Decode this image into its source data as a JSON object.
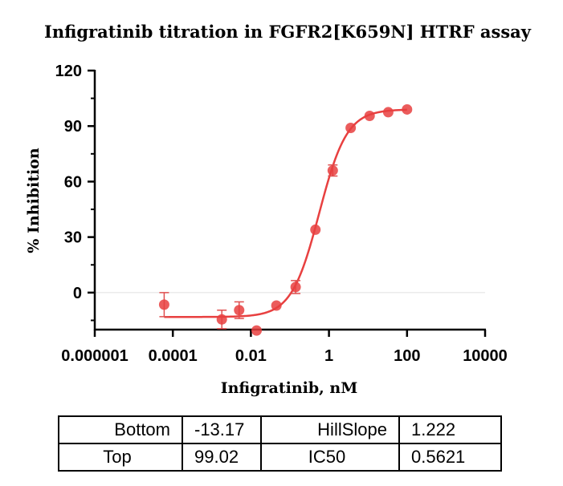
{
  "chart_data": {
    "type": "scatter",
    "title": "Infigratinib titration in FGFR2[K659N] HTRF assay",
    "xlabel": "Infigratinib, nM",
    "ylabel": "% Inhibition",
    "x_scale": "log",
    "xlim": [
      1e-06,
      10000
    ],
    "ylim": [
      -20,
      120
    ],
    "x_ticks": [
      {
        "value": 1e-06,
        "label": "0.000001"
      },
      {
        "value": 0.0001,
        "label": "0.0001"
      },
      {
        "value": 0.01,
        "label": "0.01"
      },
      {
        "value": 1,
        "label": "1"
      },
      {
        "value": 100,
        "label": "100"
      },
      {
        "value": 10000,
        "label": "10000"
      }
    ],
    "y_ticks": [
      {
        "value": 0,
        "label": "0"
      },
      {
        "value": 30,
        "label": "30"
      },
      {
        "value": 60,
        "label": "60"
      },
      {
        "value": 90,
        "label": "90"
      },
      {
        "value": 120,
        "label": "120"
      }
    ],
    "points": [
      {
        "x": 6e-05,
        "y": -6.5,
        "err": 6.5
      },
      {
        "x": 0.0018,
        "y": -14.5,
        "err": 5
      },
      {
        "x": 0.005,
        "y": -9.5,
        "err": 4.5
      },
      {
        "x": 0.014,
        "y": -20.5,
        "err": 0
      },
      {
        "x": 0.045,
        "y": -7,
        "err": 0
      },
      {
        "x": 0.14,
        "y": 3,
        "err": 3.5
      },
      {
        "x": 0.45,
        "y": 34,
        "err": 0
      },
      {
        "x": 1.25,
        "y": 66,
        "err": 3
      },
      {
        "x": 3.6,
        "y": 89,
        "err": 0
      },
      {
        "x": 11,
        "y": 95.5,
        "err": 0
      },
      {
        "x": 33,
        "y": 97.5,
        "err": 0
      },
      {
        "x": 100,
        "y": 99,
        "err": 0
      }
    ],
    "fit": {
      "model": "four-parameter logistic",
      "bottom": -13.17,
      "top": 99.02,
      "hillslope": 1.222,
      "ic50": 0.5621,
      "x_range": [
        6e-05,
        100
      ]
    },
    "zero_line": true,
    "colors": {
      "series": "#e84040",
      "error": "#e05050",
      "zero_line": "#e0e0e0",
      "axis": "#000000"
    }
  },
  "parameters_table": {
    "rows": [
      {
        "name1": "Bottom",
        "value1": "-13.17",
        "name2": "HillSlope",
        "value2": "1.222"
      },
      {
        "name1": "Top",
        "value1": "99.02",
        "name2": "IC50",
        "value2": "0.5621"
      }
    ]
  }
}
